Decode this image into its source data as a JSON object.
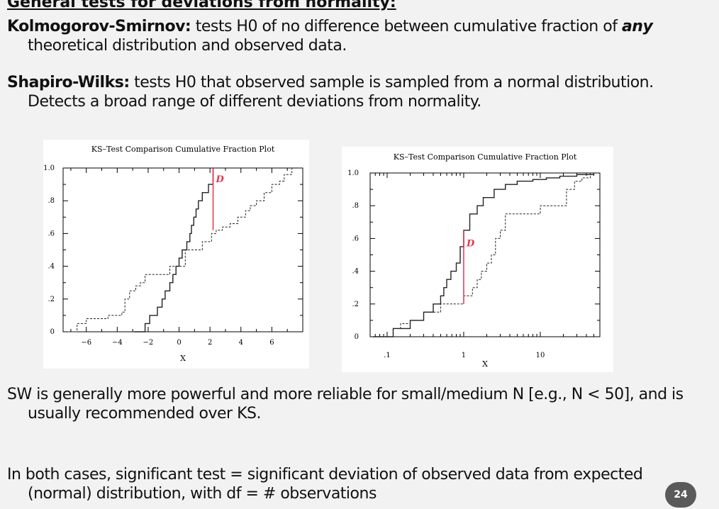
{
  "heading": "General tests for deviations from normality:",
  "ks": {
    "term": "Kolmogorov-Smirnov:",
    "text_before": " tests H0 of no difference between cumulative fraction of ",
    "emphasis": "any",
    "text_after": " theoretical distribution and observed data."
  },
  "sw": {
    "term": "Shapiro-Wilks:",
    "text": " tests H0 that observed sample is sampled from a normal distribution. Detects a broad range of different deviations from normality."
  },
  "summary": "SW is generally more powerful and more reliable for small/medium N [e.g., N < 50], and is usually recommended over KS.",
  "conclusion": "In both cases, significant test = significant deviation of observed data from expected (normal) distribution, with df = # observations",
  "page_number": "24",
  "colors": {
    "d_line": "#e8334a",
    "background": "#f2f2f2"
  },
  "chart_data": [
    {
      "type": "line",
      "step": true,
      "title": "KS–Test Comparison Cumulative Fraction Plot",
      "xlabel": "X",
      "ylabel": "",
      "xscale": "linear",
      "xlim": [
        -7.5,
        8
      ],
      "ylim": [
        0,
        1.0
      ],
      "xticks": [
        -6,
        -4,
        -2,
        0,
        2,
        4,
        6
      ],
      "xtick_labels": [
        "−6",
        "−4",
        "−2",
        "0",
        "2",
        "4",
        "6"
      ],
      "yticks": [
        0,
        0.2,
        0.4,
        0.6,
        0.8,
        1.0
      ],
      "ytick_labels": [
        "0",
        ".2",
        ".4",
        ".6",
        ".8",
        "1.0"
      ],
      "annotation": {
        "text": "D",
        "x": 2.2,
        "y_low": 0.62,
        "y_high": 1.0
      },
      "series": [
        {
          "dash": false,
          "x": [
            -2.9,
            -2.2,
            -1.9,
            -1.4,
            -1.1,
            -0.9,
            -0.6,
            -0.4,
            -0.2,
            0.0,
            0.2,
            0.5,
            0.7,
            0.8,
            0.95,
            1.1,
            1.25,
            1.5,
            1.9,
            2.2
          ],
          "y": [
            0,
            0.05,
            0.1,
            0.15,
            0.2,
            0.25,
            0.3,
            0.35,
            0.4,
            0.45,
            0.5,
            0.55,
            0.6,
            0.65,
            0.7,
            0.75,
            0.8,
            0.85,
            0.9,
            1.0
          ]
        },
        {
          "dash": true,
          "x": [
            -7.2,
            -6.6,
            -6.0,
            -4.6,
            -3.7,
            -3.5,
            -3.2,
            -2.8,
            -2.5,
            -2.2,
            -0.6,
            0.4,
            1.5,
            2.1,
            2.4,
            2.8,
            3.3,
            3.8,
            4.3,
            4.6,
            5.0,
            5.5,
            6.0,
            6.5,
            6.8,
            7.3
          ],
          "y": [
            0,
            0.05,
            0.08,
            0.1,
            0.12,
            0.2,
            0.25,
            0.28,
            0.3,
            0.35,
            0.4,
            0.5,
            0.55,
            0.6,
            0.62,
            0.64,
            0.66,
            0.7,
            0.74,
            0.77,
            0.8,
            0.85,
            0.9,
            0.92,
            0.96,
            1.0
          ]
        }
      ]
    },
    {
      "type": "line",
      "step": true,
      "title": "KS–Test Comparison Cumulative Fraction Plot",
      "xlabel": "X",
      "ylabel": "",
      "xscale": "log",
      "xlim": [
        0.06,
        60
      ],
      "ylim": [
        0,
        1.0
      ],
      "xticks": [
        0.1,
        1,
        10
      ],
      "xtick_labels": [
        ".1",
        "1",
        "10"
      ],
      "yticks": [
        0,
        0.2,
        0.4,
        0.6,
        0.8,
        1.0
      ],
      "ytick_labels": [
        "0",
        ".2",
        ".4",
        ".6",
        ".8",
        "1.0"
      ],
      "annotation": {
        "text": "D",
        "x": 1.0,
        "y_low": 0.2,
        "y_high": 0.65
      },
      "series": [
        {
          "dash": false,
          "x": [
            0.065,
            0.12,
            0.2,
            0.3,
            0.4,
            0.5,
            0.55,
            0.6,
            0.68,
            0.8,
            0.9,
            1.0,
            1.2,
            1.5,
            1.8,
            2.5,
            3.5,
            5,
            8,
            12,
            18,
            30,
            50
          ],
          "y": [
            0,
            0.05,
            0.1,
            0.15,
            0.2,
            0.25,
            0.3,
            0.35,
            0.4,
            0.45,
            0.55,
            0.65,
            0.75,
            0.8,
            0.85,
            0.9,
            0.93,
            0.95,
            0.96,
            0.97,
            0.98,
            0.99,
            1.0
          ]
        },
        {
          "dash": true,
          "x": [
            0.1,
            0.12,
            0.15,
            0.2,
            0.3,
            0.5,
            1.0,
            1.3,
            1.5,
            1.7,
            2.0,
            2.3,
            2.6,
            3.0,
            3.5,
            10,
            22,
            28,
            35,
            45
          ],
          "y": [
            0,
            0.05,
            0.08,
            0.1,
            0.15,
            0.2,
            0.25,
            0.3,
            0.35,
            0.4,
            0.45,
            0.5,
            0.6,
            0.65,
            0.75,
            0.8,
            0.9,
            0.95,
            0.97,
            1.0
          ]
        }
      ]
    }
  ]
}
